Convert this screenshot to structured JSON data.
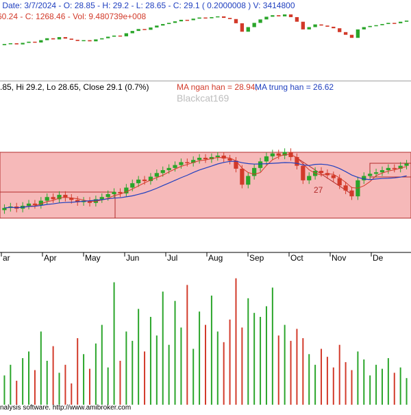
{
  "colors": {
    "up": "#2aa52a",
    "down": "#d23a2a",
    "ma_short": "#d23a2a",
    "ma_long": "#1f3fbf",
    "band_fill": "#f6b9b9",
    "band_edge": "#b12a2a",
    "watermark": "#bdbdbd",
    "grid": "#c8c8c8"
  },
  "top_panel": {
    "info_line": " - Date: 3/7/2024 - O: 28.85 - H: 29.2 - L: 28.65 - C: 29.1 ( 0.2000008 ) V: 3414800",
    "index_line": "60.24 - C: 1268.46 - Vol: 9.480739e+008"
  },
  "main_panel": {
    "ohlc_text": ".85, Hi 29.2, Lo 28.65, Close 29.1 (0.7%)",
    "ma_short_label": "MA ngan han = 28.94,",
    "ma_long_label": "MA trung han = 26.62",
    "watermark": "Blackcat169",
    "annotation": "27"
  },
  "footer": {
    "credit": "nalysis software. http://www.amibroker.com"
  },
  "chart_data": {
    "type": "candlestick",
    "x_tick_labels": [
      "ar",
      "Apr",
      "May",
      "Jun",
      "Jul",
      "Aug",
      "Sep",
      "Oct",
      "Nov",
      "De"
    ],
    "price_series": [
      22.4,
      22.6,
      22.3,
      22.7,
      23.0,
      22.8,
      23.4,
      23.9,
      23.6,
      24.2,
      23.8,
      23.5,
      23.2,
      23.4,
      23.1,
      23.6,
      23.9,
      24.3,
      24.6,
      24.4,
      25.2,
      25.8,
      26.3,
      26.1,
      26.7,
      27.2,
      27.6,
      27.9,
      28.3,
      28.7,
      28.6,
      29.0,
      29.3,
      29.1,
      29.4,
      29.6,
      29.2,
      28.9,
      27.8,
      25.6,
      26.8,
      27.9,
      28.8,
      29.5,
      29.9,
      29.6,
      30.1,
      29.4,
      28.2,
      26.2,
      26.8,
      27.5,
      27.2,
      26.9,
      26.5,
      25.5,
      24.8,
      24.0,
      26.2,
      26.8,
      27.1,
      27.3,
      27.6,
      27.9,
      27.8,
      28.2,
      28.5
    ],
    "volume_series": [
      22,
      30,
      18,
      35,
      40,
      26,
      55,
      33,
      44,
      24,
      30,
      16,
      50,
      38,
      27,
      46,
      60,
      28,
      92,
      33,
      55,
      48,
      72,
      40,
      66,
      52,
      85,
      45,
      78,
      58,
      90,
      42,
      70,
      60,
      82,
      55,
      47,
      64,
      95,
      58,
      80,
      69,
      66,
      74,
      88,
      52,
      60,
      48,
      57,
      50,
      38,
      30,
      42,
      36,
      28,
      45,
      32,
      26,
      40,
      34,
      22,
      30,
      27,
      35,
      24,
      28,
      20
    ]
  }
}
